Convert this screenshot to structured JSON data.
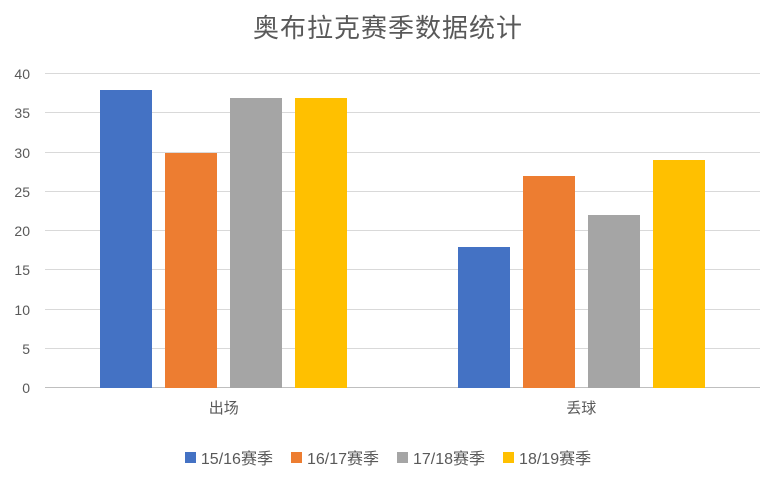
{
  "title": "奥布拉克赛季数据统计",
  "chart_data": {
    "type": "bar",
    "title": "奥布拉克赛季数据统计",
    "categories": [
      "出场",
      "丢球"
    ],
    "series": [
      {
        "name": "15/16赛季",
        "color": "#4472C4",
        "values": [
          38,
          18
        ]
      },
      {
        "name": "16/17赛季",
        "color": "#ED7D31",
        "values": [
          30,
          27
        ]
      },
      {
        "name": "17/18赛季",
        "color": "#A5A5A5",
        "values": [
          37,
          22
        ]
      },
      {
        "name": "18/19赛季",
        "color": "#FFC000",
        "values": [
          37,
          29
        ]
      }
    ],
    "xlabel": "",
    "ylabel": "",
    "ylim": [
      0,
      40
    ],
    "yticks": [
      0,
      5,
      10,
      15,
      20,
      25,
      30,
      35,
      40
    ],
    "grid": true,
    "legend_position": "bottom",
    "styles": {
      "text_color": "#595959",
      "grid_color": "#D9D9D9",
      "axis_color": "#BFBFBF",
      "background": "#FFFFFF"
    }
  }
}
